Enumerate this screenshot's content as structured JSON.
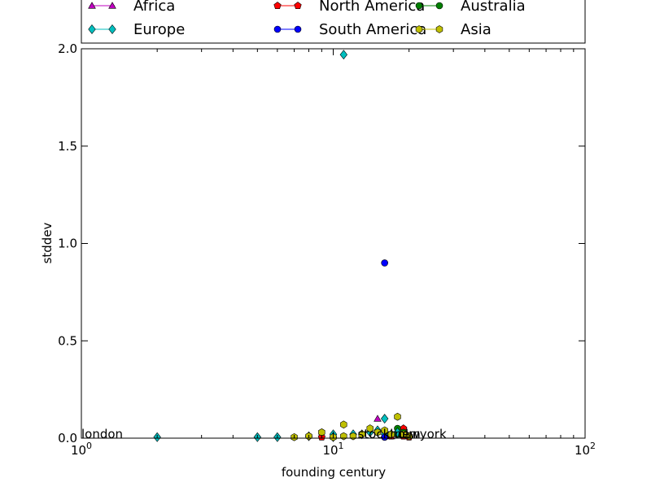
{
  "chart_data": {
    "type": "scatter",
    "title": "",
    "xlabel": "founding century",
    "ylabel": "stddev",
    "xscale": "log",
    "xlim": [
      1,
      100
    ],
    "ylim": [
      0,
      2.0
    ],
    "x_ticks": [
      {
        "value": 1,
        "base": "10",
        "exp": "0"
      },
      {
        "value": 10,
        "base": "10",
        "exp": "1"
      },
      {
        "value": 100,
        "base": "10",
        "exp": "2"
      }
    ],
    "y_ticks": [
      {
        "value": 0.0,
        "label": "0.0"
      },
      {
        "value": 0.5,
        "label": "0.5"
      },
      {
        "value": 1.0,
        "label": "1.0"
      },
      {
        "value": 1.5,
        "label": "1.5"
      },
      {
        "value": 2.0,
        "label": "2.0"
      }
    ],
    "grid": false,
    "legend_position": "top",
    "series": [
      {
        "name": "Africa",
        "color": "#bf00bf",
        "marker": "triangle",
        "points": [
          [
            15,
            0.1
          ],
          [
            16,
            0.02
          ],
          [
            17,
            0.01
          ]
        ]
      },
      {
        "name": "North America",
        "color": "#ff0000",
        "marker": "pentagon",
        "points": [
          [
            9,
            0.005
          ],
          [
            17,
            0.01
          ],
          [
            18,
            0.02
          ],
          [
            19,
            0.05
          ],
          [
            19,
            0.01
          ],
          [
            20,
            0.005
          ]
        ]
      },
      {
        "name": "Australia",
        "color": "#008000",
        "marker": "circle",
        "points": [
          [
            18,
            0.05
          ],
          [
            18,
            0.02
          ],
          [
            19,
            0.03
          ]
        ]
      },
      {
        "name": "Europe",
        "color": "#00bfbf",
        "marker": "diamond",
        "points": [
          [
            2,
            0.005
          ],
          [
            5,
            0.005
          ],
          [
            6,
            0.005
          ],
          [
            8,
            0.01
          ],
          [
            10,
            0.02
          ],
          [
            10,
            0.005
          ],
          [
            11,
            1.97
          ],
          [
            12,
            0.02
          ],
          [
            13,
            0.02
          ],
          [
            14,
            0.03
          ],
          [
            15,
            0.04
          ],
          [
            16,
            0.1
          ],
          [
            16,
            0.02
          ],
          [
            17,
            0.02
          ],
          [
            18,
            0.03
          ]
        ]
      },
      {
        "name": "South America",
        "color": "#0000ff",
        "marker": "circle",
        "points": [
          [
            16,
            0.9
          ],
          [
            16,
            0.005
          ]
        ]
      },
      {
        "name": "Asia",
        "color": "#bfbf00",
        "marker": "hexagon",
        "points": [
          [
            7,
            0.005
          ],
          [
            8,
            0.01
          ],
          [
            9,
            0.03
          ],
          [
            10,
            0.005
          ],
          [
            11,
            0.07
          ],
          [
            11,
            0.01
          ],
          [
            12,
            0.01
          ],
          [
            13,
            0.02
          ],
          [
            14,
            0.05
          ],
          [
            15,
            0.03
          ],
          [
            16,
            0.04
          ],
          [
            17,
            0.02
          ],
          [
            18,
            0.11
          ],
          [
            19,
            0.02
          ],
          [
            20,
            0.01
          ]
        ]
      }
    ],
    "annotations": [
      {
        "text": "london",
        "x": 1,
        "y": 0.0
      },
      {
        "text": "stockholm",
        "x": 12.5,
        "y": 0.0
      },
      {
        "text": "newyork",
        "x": 17.5,
        "y": 0.0
      }
    ]
  }
}
